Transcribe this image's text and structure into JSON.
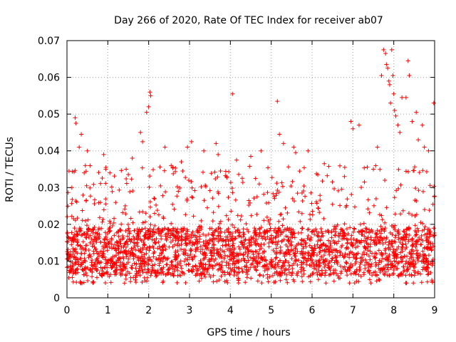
{
  "chart_data": {
    "type": "scatter",
    "title": "Day 266 of 2020, Rate Of TEC Index for receiver ab07",
    "xlabel": "GPS time / hours",
    "ylabel": "ROTI / TECUs",
    "xlim": [
      0,
      9
    ],
    "ylim": [
      0,
      0.07
    ],
    "grid": true,
    "marker": "+",
    "color": "#ff0000",
    "xticks": [
      "0",
      "1",
      "2",
      "3",
      "4",
      "5",
      "6",
      "7",
      "8",
      "9"
    ],
    "yticks": [
      "0",
      "0.01",
      "0.02",
      "0.03",
      "0.04",
      "0.05",
      "0.06",
      "0.07"
    ],
    "series": [
      {
        "name": "ROTI",
        "points": [
          [
            0.05,
            0.0345
          ],
          [
            0.12,
            0.03
          ],
          [
            0.2,
            0.049
          ],
          [
            0.22,
            0.0475
          ],
          [
            0.3,
            0.041
          ],
          [
            0.35,
            0.0445
          ],
          [
            0.45,
            0.036
          ],
          [
            0.5,
            0.04
          ],
          [
            0.9,
            0.039
          ],
          [
            0.95,
            0.035
          ],
          [
            1.05,
            0.034
          ],
          [
            1.45,
            0.035
          ],
          [
            1.6,
            0.038
          ],
          [
            1.8,
            0.045
          ],
          [
            1.85,
            0.0425
          ],
          [
            1.95,
            0.0505
          ],
          [
            2.0,
            0.052
          ],
          [
            2.03,
            0.056
          ],
          [
            2.05,
            0.055
          ],
          [
            2.4,
            0.041
          ],
          [
            2.55,
            0.036
          ],
          [
            2.8,
            0.037
          ],
          [
            2.95,
            0.041
          ],
          [
            3.05,
            0.0425
          ],
          [
            3.35,
            0.04
          ],
          [
            3.65,
            0.042
          ],
          [
            3.7,
            0.039
          ],
          [
            4.05,
            0.0555
          ],
          [
            4.15,
            0.0375
          ],
          [
            4.5,
            0.0385
          ],
          [
            4.75,
            0.04
          ],
          [
            5.15,
            0.0535
          ],
          [
            5.2,
            0.0445
          ],
          [
            5.3,
            0.042
          ],
          [
            5.55,
            0.041
          ],
          [
            5.6,
            0.0395
          ],
          [
            5.9,
            0.04
          ],
          [
            6.3,
            0.0365
          ],
          [
            6.8,
            0.0355
          ],
          [
            6.95,
            0.048
          ],
          [
            7.0,
            0.046
          ],
          [
            7.15,
            0.047
          ],
          [
            7.5,
            0.035
          ],
          [
            7.6,
            0.041
          ],
          [
            7.7,
            0.0605
          ],
          [
            7.75,
            0.0675
          ],
          [
            7.8,
            0.0665
          ],
          [
            7.82,
            0.0635
          ],
          [
            7.85,
            0.0625
          ],
          [
            7.88,
            0.059
          ],
          [
            7.9,
            0.058
          ],
          [
            7.92,
            0.053
          ],
          [
            7.95,
            0.0675
          ],
          [
            7.98,
            0.0605
          ],
          [
            8.0,
            0.0555
          ],
          [
            8.02,
            0.051
          ],
          [
            8.05,
            0.0495
          ],
          [
            8.1,
            0.047
          ],
          [
            8.15,
            0.045
          ],
          [
            8.2,
            0.0545
          ],
          [
            8.3,
            0.0545
          ],
          [
            8.35,
            0.0645
          ],
          [
            8.38,
            0.0605
          ],
          [
            8.45,
            0.048
          ],
          [
            8.55,
            0.0505
          ],
          [
            8.6,
            0.043
          ],
          [
            8.7,
            0.047
          ],
          [
            8.75,
            0.041
          ],
          [
            8.85,
            0.04
          ],
          [
            8.98,
            0.053
          ]
        ],
        "envelope": {
          "x_range": [
            0,
            9
          ],
          "core_range": [
            0.006,
            0.019
          ],
          "spread_range": [
            0.004,
            0.036
          ]
        }
      }
    ]
  }
}
